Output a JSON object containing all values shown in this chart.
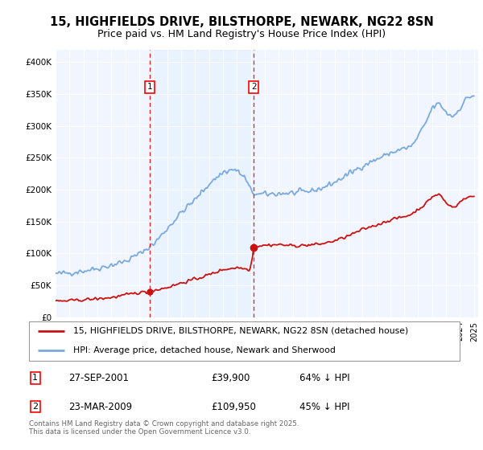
{
  "title": "15, HIGHFIELDS DRIVE, BILSTHORPE, NEWARK, NG22 8SN",
  "subtitle": "Price paid vs. HM Land Registry's House Price Index (HPI)",
  "title_fontsize": 10.5,
  "subtitle_fontsize": 9,
  "background_color": "#ffffff",
  "plot_bg_color": "#f0f4ff",
  "hpi_color": "#7aaadd",
  "price_color": "#cc1111",
  "vline_color": "#dd2222",
  "shade_color": "#ddeeff",
  "sale1": {
    "label": "27-SEP-2001",
    "price": "£39,900",
    "pct": "64% ↓ HPI"
  },
  "sale2": {
    "label": "23-MAR-2009",
    "price": "£109,950",
    "pct": "45% ↓ HPI"
  },
  "legend_entry1": "15, HIGHFIELDS DRIVE, BILSTHORPE, NEWARK, NG22 8SN (detached house)",
  "legend_entry2": "HPI: Average price, detached house, Newark and Sherwood",
  "footer": "Contains HM Land Registry data © Crown copyright and database right 2025.\nThis data is licensed under the Open Government Licence v3.0.",
  "ylim": [
    0,
    420000
  ],
  "yticks": [
    0,
    50000,
    100000,
    150000,
    200000,
    250000,
    300000,
    350000,
    400000
  ],
  "ytick_labels": [
    "£0",
    "£50K",
    "£100K",
    "£150K",
    "£200K",
    "£250K",
    "£300K",
    "£350K",
    "£400K"
  ],
  "sale1_year": 2001.75,
  "sale2_year": 2009.21,
  "xmin": 1995.0,
  "xmax": 2025.3
}
